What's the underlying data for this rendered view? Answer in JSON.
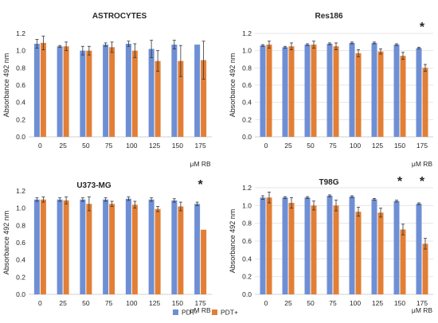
{
  "colors": {
    "pdt_minus": "#6f8fd4",
    "pdt_plus": "#e27f36",
    "gridline": "#e6e6e6",
    "error_bar": "#333333",
    "text": "#262626"
  },
  "legend": {
    "placement": "bottom-center",
    "items": [
      "PDT-",
      "PDT+"
    ]
  },
  "chart_data": [
    {
      "type": "bar",
      "title": "ASTROCYTES",
      "ylabel": "Absorbance 492 nm",
      "xlabel": "μM RB",
      "ylim": [
        0,
        1.2
      ],
      "yticks": [
        "0.0",
        "0.2",
        "0.4",
        "0.6",
        "0.8",
        "1.0",
        "1.2"
      ],
      "grid": false,
      "categories": [
        "0",
        "25",
        "50",
        "75",
        "100",
        "125",
        "150",
        "175"
      ],
      "series": [
        {
          "name": "PDT-",
          "values": [
            1.08,
            1.05,
            1.0,
            1.07,
            1.08,
            1.02,
            1.07,
            1.07
          ],
          "errors": [
            0.05,
            0.01,
            0.05,
            0.02,
            0.03,
            0.1,
            0.05,
            0.0
          ]
        },
        {
          "name": "PDT+",
          "values": [
            1.09,
            1.05,
            1.0,
            1.04,
            1.0,
            0.88,
            0.88,
            0.89
          ],
          "errors": [
            0.08,
            0.05,
            0.05,
            0.06,
            0.08,
            0.12,
            0.18,
            0.22
          ]
        }
      ],
      "significance": []
    },
    {
      "type": "bar",
      "title": "Res186",
      "ylabel": "Absorbance 492 nm",
      "xlabel": "μM RB",
      "ylim": [
        0,
        1.2
      ],
      "yticks": [
        "0.0",
        "0.2",
        "0.4",
        "0.6",
        "0.8",
        "1.0",
        "1.2"
      ],
      "grid": true,
      "categories": [
        "0",
        "25",
        "50",
        "75",
        "100",
        "125",
        "150",
        "175"
      ],
      "series": [
        {
          "name": "PDT-",
          "values": [
            1.06,
            1.04,
            1.07,
            1.08,
            1.09,
            1.09,
            1.07,
            1.03
          ],
          "errors": [
            0.01,
            0.01,
            0.01,
            0.01,
            0.01,
            0.01,
            0.01,
            0.01
          ]
        },
        {
          "name": "PDT+",
          "values": [
            1.07,
            1.05,
            1.07,
            1.05,
            0.97,
            0.99,
            0.94,
            0.8
          ],
          "errors": [
            0.04,
            0.04,
            0.04,
            0.04,
            0.04,
            0.03,
            0.04,
            0.04
          ]
        }
      ],
      "significance": [
        {
          "category": "175",
          "label": "*"
        }
      ]
    },
    {
      "type": "bar",
      "title": "U373-MG",
      "ylabel": "Absorbance 492 nm",
      "xlabel": "μM RB",
      "ylim": [
        0,
        1.2
      ],
      "yticks": [
        "0.0",
        "0.2",
        "0.4",
        "0.6",
        "0.8",
        "1.0",
        "1.2"
      ],
      "grid": false,
      "categories": [
        "0",
        "25",
        "50",
        "75",
        "100",
        "125",
        "150",
        "175"
      ],
      "series": [
        {
          "name": "PDT-",
          "values": [
            1.1,
            1.1,
            1.1,
            1.1,
            1.11,
            1.1,
            1.09,
            1.05
          ],
          "errors": [
            0.02,
            0.02,
            0.02,
            0.02,
            0.02,
            0.02,
            0.02,
            0.02
          ]
        },
        {
          "name": "PDT+",
          "values": [
            1.1,
            1.09,
            1.05,
            1.05,
            1.04,
            0.99,
            1.02,
            0.75
          ],
          "errors": [
            0.03,
            0.04,
            0.08,
            0.03,
            0.04,
            0.03,
            0.05,
            0.0
          ]
        }
      ],
      "significance": [
        {
          "category": "175",
          "label": "*"
        }
      ]
    },
    {
      "type": "bar",
      "title": "T98G",
      "ylabel": "Absorbance 492 nm",
      "xlabel": "μM RB",
      "ylim": [
        0,
        1.2
      ],
      "yticks": [
        "0.0",
        "0.2",
        "0.4",
        "0.6",
        "0.8",
        "1.0",
        "1.2"
      ],
      "grid": true,
      "categories": [
        "0",
        "25",
        "50",
        "75",
        "100",
        "125",
        "150",
        "175"
      ],
      "series": [
        {
          "name": "PDT-",
          "values": [
            1.09,
            1.09,
            1.09,
            1.11,
            1.1,
            1.07,
            1.05,
            1.02
          ],
          "errors": [
            0.02,
            0.01,
            0.01,
            0.01,
            0.01,
            0.01,
            0.01,
            0.01
          ]
        },
        {
          "name": "PDT+",
          "values": [
            1.09,
            1.03,
            1.0,
            1.0,
            0.93,
            0.92,
            0.73,
            0.57
          ],
          "errors": [
            0.06,
            0.06,
            0.05,
            0.06,
            0.05,
            0.05,
            0.06,
            0.06
          ]
        }
      ],
      "significance": [
        {
          "category": "150",
          "label": "*"
        },
        {
          "category": "175",
          "label": "*"
        }
      ]
    }
  ]
}
